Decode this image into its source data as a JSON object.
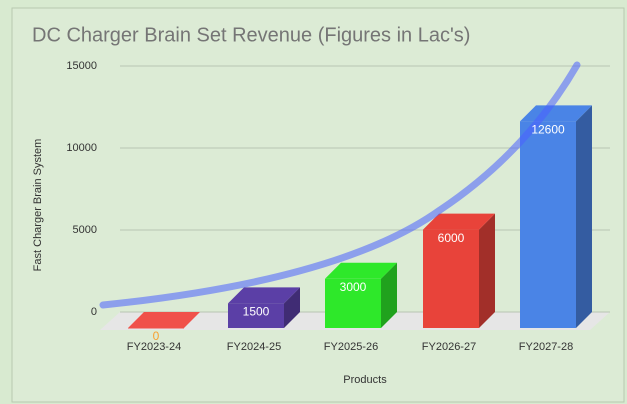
{
  "chart_data": {
    "type": "bar3d",
    "title": "DC Charger Brain Set Revenue (Figures in Lac's)",
    "x_label": "Products",
    "y_label": "Fast Charger Brain System",
    "categories": [
      "FY2023-24",
      "FY2024-25",
      "FY2025-26",
      "FY2026-27",
      "FY2027-28"
    ],
    "values": [
      0,
      1500,
      3000,
      6000,
      12600
    ],
    "colors": [
      "#f0504a",
      "#5b3fa6",
      "#2ee82a",
      "#e8433a",
      "#4a84e6"
    ],
    "ylim": [
      0,
      15000
    ],
    "yticks": [
      0,
      5000,
      10000,
      15000
    ],
    "grid": true
  }
}
